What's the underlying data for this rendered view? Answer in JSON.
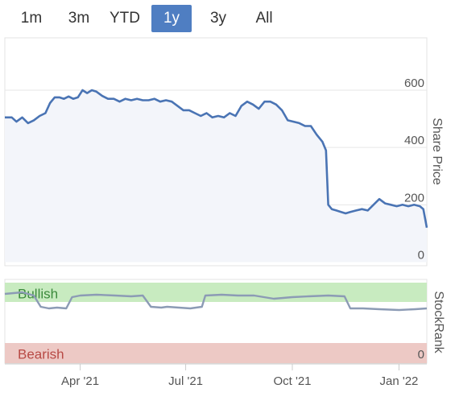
{
  "range_selector": {
    "buttons": [
      "1m",
      "3m",
      "YTD",
      "1y",
      "3y",
      "All"
    ],
    "active": "1y"
  },
  "colors": {
    "price_line": "#4a74b4",
    "price_fill": "#f3f5fa",
    "rank_line": "#8c9bb5",
    "bullish_band": "#c8ebc0",
    "bearish_band": "#edc9c5",
    "active_button": "#4f7ec2"
  },
  "chart_data": [
    {
      "type": "line",
      "ylabel": "Share Price",
      "ylim": [
        0,
        600
      ],
      "yticks": [
        "0",
        "200",
        "400",
        "600"
      ],
      "grid": true,
      "x_ticks": [
        "Apr '21",
        "Jul '21",
        "Oct '21",
        "Jan '22"
      ],
      "series": [
        {
          "dates": [
            "2021-01-26",
            "2021-02-01",
            "2021-02-05",
            "2021-02-10",
            "2021-02-15",
            "2021-02-20",
            "2021-02-25",
            "2021-03-02",
            "2021-03-06",
            "2021-03-10",
            "2021-03-14",
            "2021-03-18",
            "2021-03-22",
            "2021-03-26",
            "2021-03-30",
            "2021-04-03",
            "2021-04-07",
            "2021-04-11",
            "2021-04-15",
            "2021-04-20",
            "2021-04-25",
            "2021-04-30",
            "2021-05-05",
            "2021-05-10",
            "2021-05-15",
            "2021-05-20",
            "2021-05-25",
            "2021-05-30",
            "2021-06-04",
            "2021-06-09",
            "2021-06-14",
            "2021-06-19",
            "2021-06-24",
            "2021-06-29",
            "2021-07-04",
            "2021-07-09",
            "2021-07-14",
            "2021-07-19",
            "2021-07-24",
            "2021-07-29",
            "2021-08-03",
            "2021-08-08",
            "2021-08-13",
            "2021-08-18",
            "2021-08-23",
            "2021-08-28",
            "2021-09-02",
            "2021-09-07",
            "2021-09-12",
            "2021-09-17",
            "2021-09-22",
            "2021-09-27",
            "2021-10-02",
            "2021-10-07",
            "2021-10-12",
            "2021-10-17",
            "2021-10-22",
            "2021-10-27",
            "2021-10-30",
            "2021-11-01",
            "2021-11-04",
            "2021-11-08",
            "2021-11-12",
            "2021-11-16",
            "2021-11-20",
            "2021-11-25",
            "2021-11-30",
            "2021-12-05",
            "2021-12-10",
            "2021-12-15",
            "2021-12-20",
            "2021-12-25",
            "2021-12-30",
            "2022-01-04",
            "2022-01-09",
            "2022-01-14",
            "2022-01-19",
            "2022-01-22",
            "2022-01-25"
          ],
          "values": [
            505,
            505,
            490,
            505,
            485,
            495,
            510,
            520,
            555,
            575,
            575,
            570,
            578,
            570,
            575,
            600,
            590,
            600,
            595,
            580,
            570,
            570,
            560,
            570,
            565,
            570,
            565,
            565,
            570,
            560,
            565,
            560,
            545,
            530,
            530,
            520,
            510,
            520,
            505,
            510,
            505,
            520,
            510,
            545,
            560,
            550,
            535,
            560,
            560,
            550,
            530,
            495,
            490,
            485,
            475,
            475,
            445,
            420,
            390,
            200,
            185,
            180,
            175,
            170,
            175,
            180,
            185,
            180,
            200,
            220,
            205,
            200,
            195,
            200,
            195,
            200,
            195,
            185,
            120
          ]
        }
      ]
    },
    {
      "type": "line",
      "ylabel": "StockRank",
      "band_labels": [
        "Bullish",
        "Bearish"
      ],
      "yticks": [
        "0"
      ],
      "series": [
        {
          "dates": [
            "2021-01-26",
            "2021-02-10",
            "2021-02-20",
            "2021-02-26",
            "2021-03-05",
            "2021-03-12",
            "2021-03-20",
            "2021-03-25",
            "2021-04-01",
            "2021-04-15",
            "2021-05-01",
            "2021-05-15",
            "2021-05-25",
            "2021-06-01",
            "2021-06-10",
            "2021-06-15",
            "2021-06-25",
            "2021-07-05",
            "2021-07-15",
            "2021-07-18",
            "2021-08-01",
            "2021-08-15",
            "2021-08-29",
            "2021-09-15",
            "2021-10-01",
            "2021-10-15",
            "2021-11-01",
            "2021-11-15",
            "2021-11-20",
            "2021-12-01",
            "2021-12-15",
            "2022-01-01",
            "2022-01-15",
            "2022-01-25"
          ],
          "values": [
            86,
            88,
            84,
            70,
            68,
            69,
            68,
            82,
            84,
            85,
            84,
            83,
            84,
            70,
            69,
            70,
            69,
            68,
            70,
            84,
            85,
            84,
            84,
            80,
            82,
            83,
            84,
            83,
            68,
            68,
            67,
            66,
            67,
            68
          ]
        }
      ]
    }
  ]
}
